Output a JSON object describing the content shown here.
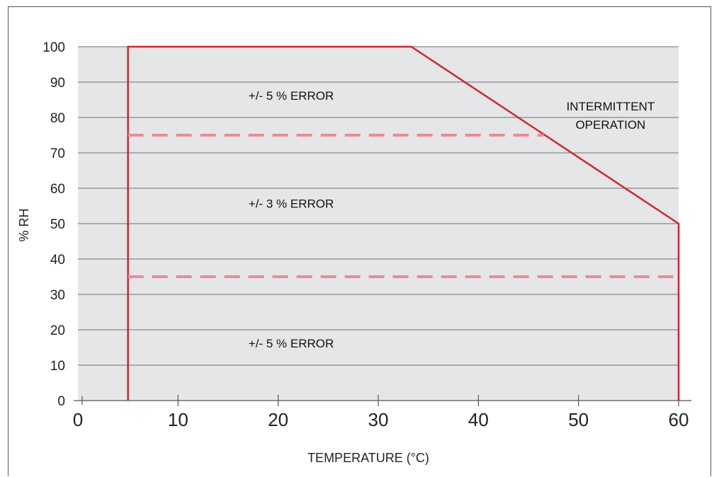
{
  "chart_data": {
    "type": "line",
    "xlabel": "TEMPERATURE (°C)",
    "ylabel": "% RH",
    "xlim": [
      0,
      60
    ],
    "ylim": [
      0,
      100
    ],
    "x_ticks": [
      0,
      10,
      20,
      30,
      40,
      50,
      60
    ],
    "y_ticks": [
      0,
      10,
      20,
      30,
      40,
      50,
      60,
      70,
      80,
      90,
      100
    ],
    "grid": "horizontal",
    "series": [
      {
        "style": "solid",
        "color": "#d8232a",
        "points": [
          [
            5,
            0
          ],
          [
            5,
            100
          ],
          [
            33.3,
            100
          ],
          [
            60,
            50
          ],
          [
            60,
            0
          ]
        ]
      },
      {
        "style": "dashed",
        "color": "#ef8a92",
        "points": [
          [
            5,
            75
          ],
          [
            46.5,
            75
          ]
        ]
      },
      {
        "style": "dashed",
        "color": "#ef8a92",
        "points": [
          [
            5,
            35
          ],
          [
            60,
            35
          ]
        ]
      }
    ],
    "annotations": [
      {
        "id": "upper-error",
        "lines": [
          "+/- 5 % ERROR"
        ],
        "x": 21.3,
        "y": 85
      },
      {
        "id": "middle-error",
        "lines": [
          "+/- 3 % ERROR"
        ],
        "x": 21.3,
        "y": 54.5
      },
      {
        "id": "lower-error",
        "lines": [
          "+/- 5 % ERROR"
        ],
        "x": 21.3,
        "y": 15
      },
      {
        "id": "intermittent",
        "lines": [
          "INTERMITTENT",
          "OPERATION"
        ],
        "x": 53.2,
        "y": 82
      }
    ],
    "colors": {
      "plot_background": "#e5e6e8",
      "gridline": "#6f6f6f",
      "boundary": "#d8232a",
      "dashed": "#ef8a92"
    }
  }
}
